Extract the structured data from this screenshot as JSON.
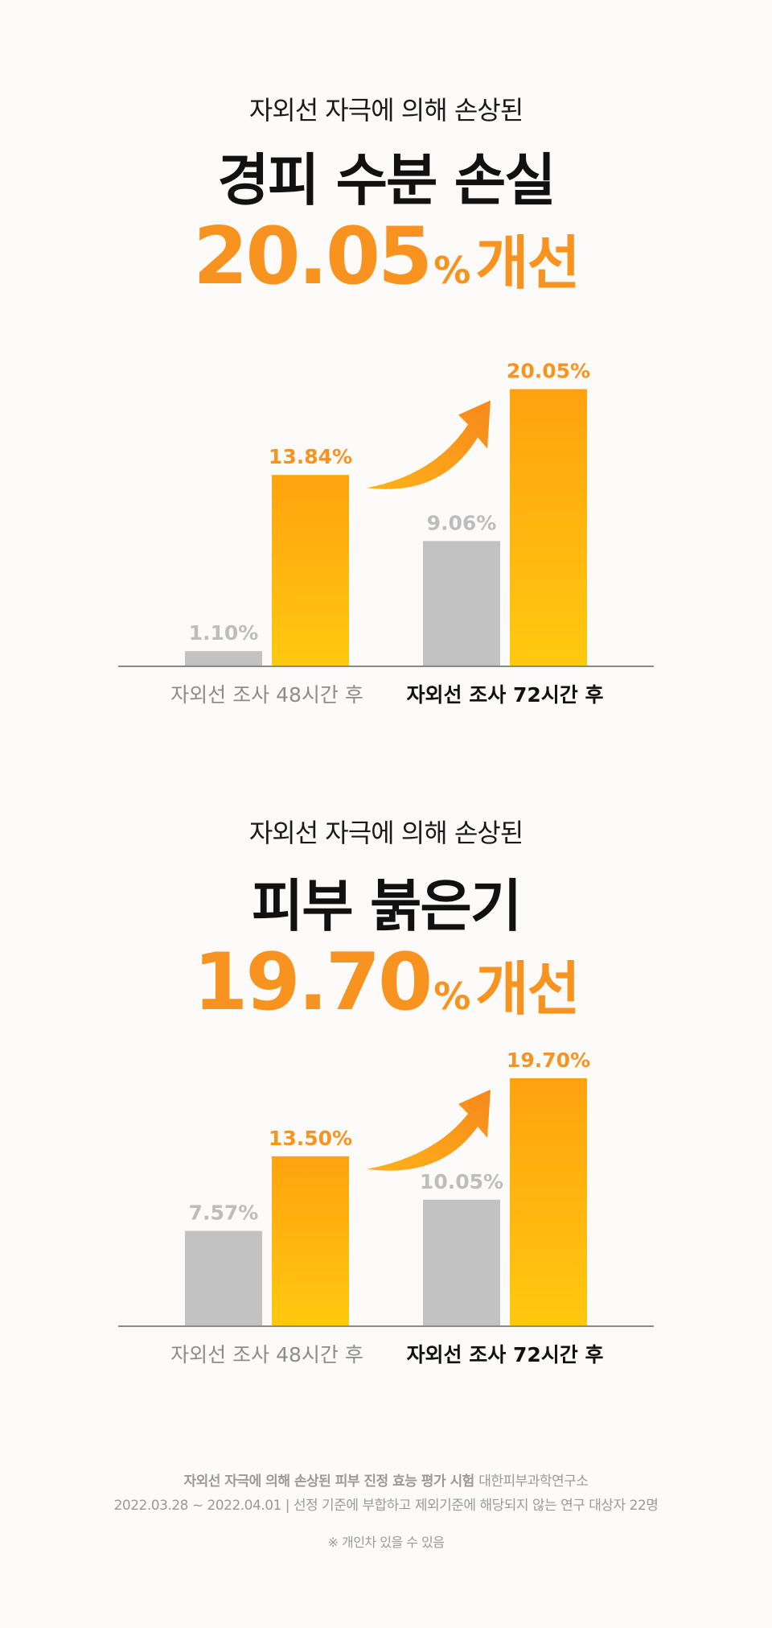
{
  "charts": [
    {
      "subtitle": "자외선 자극에 의해 손상된",
      "title": "경피 수분 손실",
      "headline_value": "20.05",
      "headline_pct": "%",
      "headline_word": "개선"
    },
    {
      "subtitle": "자외선 자극에 의해 손상된",
      "title": "피부 붉은기",
      "headline_value": "19.70",
      "headline_pct": "%",
      "headline_word": "개선"
    }
  ],
  "chart_data": [
    {
      "type": "bar",
      "title": "경피 수분 손실",
      "categories": [
        "자외선 조사 48시간 후",
        "자외선 조사 72시간 후"
      ],
      "series": [
        {
          "values": [
            1.1,
            9.06
          ],
          "labels": [
            "1.10%",
            "9.06%"
          ],
          "color": "#c2c2c2"
        },
        {
          "values": [
            13.84,
            20.05
          ],
          "labels": [
            "13.84%",
            "20.05%"
          ],
          "color": "#ffa70f"
        }
      ],
      "ylim": [
        0,
        22
      ],
      "grid": false,
      "highlight_category": 1
    },
    {
      "type": "bar",
      "title": "피부 붉은기",
      "categories": [
        "자외선 조사 48시간 후",
        "자외선 조사 72시간 후"
      ],
      "series": [
        {
          "values": [
            7.57,
            10.05
          ],
          "labels": [
            "7.57%",
            "10.05%"
          ],
          "color": "#c2c2c2"
        },
        {
          "values": [
            13.5,
            19.7
          ],
          "labels": [
            "13.50%",
            "19.70%"
          ],
          "color": "#ffa70f"
        }
      ],
      "ylim": [
        0,
        20.2
      ],
      "grid": false,
      "highlight_category": 1
    }
  ],
  "colors": {
    "accent": "#f7931e",
    "bar_orange_top": "#ffa20f",
    "bar_orange_bottom": "#ffc90f",
    "bar_gray": "#c2c2c2",
    "label_gray": "#bdbdbd",
    "axis": "#8a8a8a"
  },
  "footnotes": {
    "study_title": "자외선 자극에 의해 손상된 피부 진정 효능 평가 시험",
    "institute": "대한피부과학연구소",
    "dates_line": "2022.03.28 ~ 2022.04.01 | 선정 기준에 부합하고 제외기준에 해당되지 않는 연구 대상자 22명",
    "note": "※ 개인차 있을 수 있음"
  }
}
